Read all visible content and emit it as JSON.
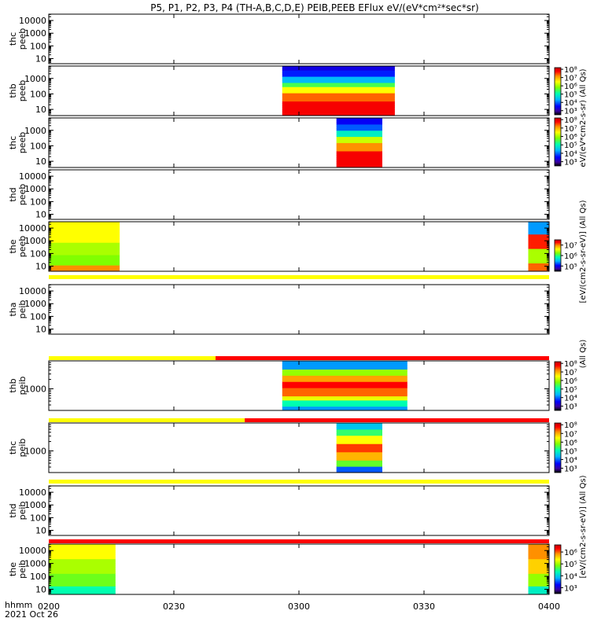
{
  "chart_data": {
    "type": "heatmap",
    "title": "P5, P1, P2, P3, P4 (TH-A,B,C,D,E) PEIB,PEEB EFlux eV/(eV*cm²*sec*sr)",
    "xlabel_line1": "hhmm",
    "xlabel_line2": "2021 Oct 26",
    "x_ticks": [
      "0200",
      "0230",
      "0300",
      "0330",
      "0400"
    ],
    "x_range_minutes": [
      0,
      120
    ],
    "colorbar_labels": {
      "c1": "eV/(eV*cm2-s-sr) (All Qs)",
      "c2": "[eV/(cm2-s-sr-eV)] (All Qs)",
      "c3": "(All Qs)",
      "c4": "[eV/(cm2-s-sr-eV)] (All Qs)"
    },
    "panels": [
      {
        "id": "p1",
        "label1": "thc",
        "label2": "peeb",
        "yticks": [
          "10000",
          "1000",
          "100",
          "10"
        ],
        "ylog_range": [
          0.6,
          4.5
        ],
        "colorbar": null,
        "segments": []
      },
      {
        "id": "p2",
        "label1": "thb",
        "label2": "peeb",
        "yticks": [
          "1000",
          "100",
          "10"
        ],
        "ylog_range": [
          0.6,
          3.8
        ],
        "colorbar": {
          "ticks": [
            "10⁸",
            "10⁷",
            "10⁶",
            "10⁵",
            "10⁴",
            "10³"
          ],
          "log_range": [
            2.5,
            8.2
          ]
        },
        "segments": [
          {
            "t": [
              56,
              83
            ],
            "profile": "peeb_b"
          }
        ]
      },
      {
        "id": "p3",
        "label1": "thc",
        "label2": "peeb",
        "yticks": [
          "1000",
          "100",
          "10"
        ],
        "ylog_range": [
          0.6,
          3.8
        ],
        "colorbar": {
          "ticks": [
            "10⁸",
            "10⁷",
            "10⁶",
            "10⁵",
            "10⁴",
            "10³"
          ],
          "log_range": [
            2.5,
            8.2
          ]
        },
        "segments": [
          {
            "t": [
              69,
              80
            ],
            "profile": "peeb_c"
          }
        ]
      },
      {
        "id": "p4",
        "label1": "thd",
        "label2": "peeb",
        "yticks": [
          "10000",
          "1000",
          "100",
          "10"
        ],
        "ylog_range": [
          0.6,
          4.5
        ],
        "colorbar": null,
        "segments": []
      },
      {
        "id": "p5",
        "label1": "the",
        "label2": "peeb",
        "yticks": [
          "10000",
          "1000",
          "100",
          "10"
        ],
        "ylog_range": [
          0.6,
          4.5
        ],
        "colorbar": {
          "ticks": [
            "10⁷",
            "10⁶",
            "10⁵"
          ],
          "log_range": [
            4.5,
            7.5
          ]
        },
        "segments": [
          {
            "t": [
              0,
              17
            ],
            "profile": "peeb_e"
          },
          {
            "t": [
              115,
              120
            ],
            "profile": "peeb_e2"
          }
        ]
      },
      {
        "id": "p6",
        "label1": "tha",
        "label2": "peib",
        "yticks": [
          "10000",
          "1000",
          "100",
          "10"
        ],
        "ylog_range": [
          0.6,
          4.5
        ],
        "colorbar": null,
        "segments": []
      },
      {
        "id": "p7",
        "label1": "thb",
        "label2": "peib",
        "yticks": [
          "1000"
        ],
        "ylog_range": [
          2.3,
          3.9
        ],
        "colorbar": {
          "ticks": [
            "10⁸",
            "10⁷",
            "10⁶",
            "10⁵",
            "10⁴",
            "10³"
          ],
          "log_range": [
            2.5,
            8.2
          ]
        },
        "segments": [
          {
            "t": [
              56,
              86
            ],
            "profile": "peib_b"
          }
        ]
      },
      {
        "id": "p8",
        "label1": "thc",
        "label2": "peib",
        "yticks": [
          "1000"
        ],
        "ylog_range": [
          2.3,
          3.9
        ],
        "colorbar": {
          "ticks": [
            "10⁸",
            "10⁷",
            "10⁶",
            "10⁵",
            "10⁴",
            "10³"
          ],
          "log_range": [
            2.5,
            8.2
          ]
        },
        "segments": [
          {
            "t": [
              69,
              80
            ],
            "profile": "peib_c"
          }
        ]
      },
      {
        "id": "p9",
        "label1": "thd",
        "label2": "peib",
        "yticks": [
          "10000",
          "1000",
          "100",
          "10"
        ],
        "ylog_range": [
          0.6,
          4.5
        ],
        "colorbar": null,
        "segments": []
      },
      {
        "id": "p10",
        "label1": "the",
        "label2": "peib",
        "yticks": [
          "10000",
          "1000",
          "100",
          "10"
        ],
        "ylog_range": [
          0.6,
          4.5
        ],
        "colorbar": {
          "ticks": [
            "10⁶",
            "10⁵",
            "10⁴",
            "10³"
          ],
          "log_range": [
            2.5,
            6.6
          ]
        },
        "segments": [
          {
            "t": [
              0,
              16
            ],
            "profile": "peib_e"
          },
          {
            "t": [
              115,
              120
            ],
            "profile": "peib_e2"
          }
        ]
      }
    ],
    "quality_bars": [
      {
        "after_panel": "p5",
        "segments": [
          {
            "t": [
              0,
              120
            ],
            "color": "#ffff00"
          }
        ]
      },
      {
        "after_panel": "p6",
        "segments": [
          {
            "t": [
              0,
              40
            ],
            "color": "#ffff00"
          },
          {
            "t": [
              40,
              120
            ],
            "color": "#ff0000"
          }
        ]
      },
      {
        "after_panel": "p7",
        "segments": [
          {
            "t": [
              0,
              47
            ],
            "color": "#ffff00"
          },
          {
            "t": [
              47,
              120
            ],
            "color": "#ff0000"
          }
        ]
      },
      {
        "after_panel": "p8",
        "segments": [
          {
            "t": [
              0,
              120
            ],
            "color": "#ffff00"
          }
        ]
      },
      {
        "after_panel": "p9",
        "segments": [
          {
            "t": [
              0,
              120
            ],
            "color": "#ff0000"
          }
        ]
      }
    ]
  }
}
